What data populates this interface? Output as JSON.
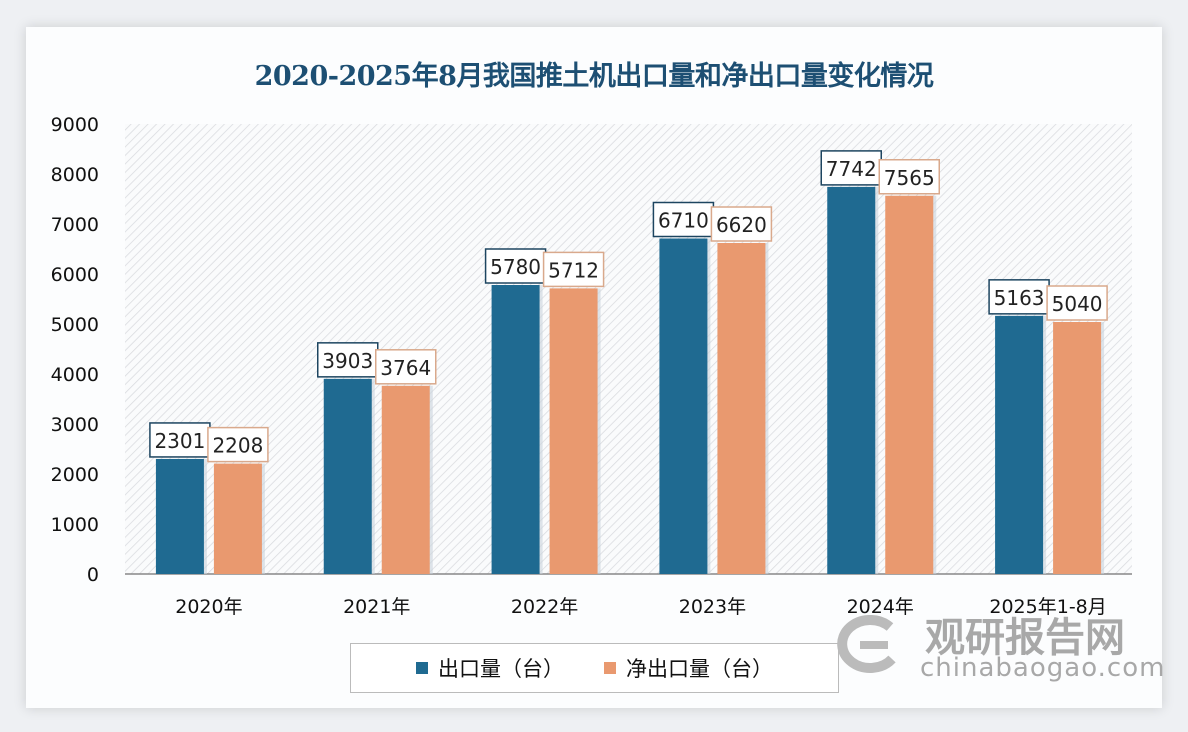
{
  "chart_data": {
    "type": "bar",
    "title": "2020-2025年8月我国推土机出口量和净出口量变化情况",
    "categories": [
      "2020年",
      "2021年",
      "2022年",
      "2023年",
      "2024年",
      "2025年1-8月"
    ],
    "series": [
      {
        "name": "出口量（台）",
        "color": "#1f6a91",
        "values": [
          2301,
          3903,
          5780,
          6710,
          7742,
          5163
        ]
      },
      {
        "name": "净出口量（台）",
        "color": "#e9996f",
        "values": [
          2208,
          3764,
          5712,
          6620,
          7565,
          5040
        ]
      }
    ],
    "yticks": [
      0,
      1000,
      2000,
      3000,
      4000,
      5000,
      6000,
      7000,
      8000,
      9000
    ],
    "ylim": [
      0,
      9000
    ],
    "xlabel": "",
    "ylabel": "",
    "legend": "bottom"
  },
  "watermark": {
    "cn": "观研报告网",
    "en": "chinabaogao.com"
  }
}
